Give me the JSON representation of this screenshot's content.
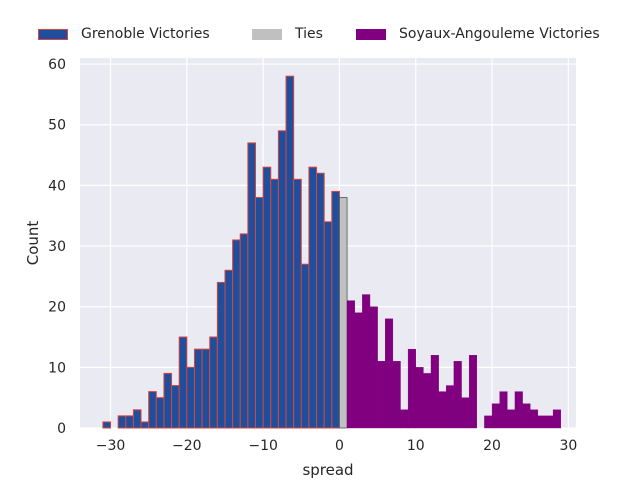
{
  "chart_data": {
    "type": "bar",
    "title": "",
    "xlabel": "spread",
    "ylabel": "Count",
    "xlim": [
      -34,
      31
    ],
    "ylim": [
      0,
      61
    ],
    "grid": true,
    "legend_position": "top-center",
    "x_ticks": [
      -30,
      -20,
      -10,
      0,
      10,
      20,
      30
    ],
    "x_tick_labels": [
      "−30",
      "−20",
      "−10",
      "0",
      "10",
      "20",
      "30"
    ],
    "y_ticks": [
      0,
      10,
      20,
      30,
      40,
      50,
      60
    ],
    "y_tick_labels": [
      "0",
      "10",
      "20",
      "30",
      "40",
      "50",
      "60"
    ],
    "bin_width": 1,
    "colors": {
      "background": "#eaeaf2",
      "grid": "#ffffff",
      "grenoble_fill": "#1f4e9c",
      "grenoble_edge": "#d9453c",
      "ties_fill": "#c0c0c0",
      "ties_edge": "#555555",
      "soyaux_fill": "#800080"
    },
    "series": [
      {
        "name": "Grenoble Victories",
        "key": "grenoble",
        "bins": [
          [
            -31,
            1
          ],
          [
            -29,
            2
          ],
          [
            -28,
            2
          ],
          [
            -27,
            3
          ],
          [
            -26,
            1
          ],
          [
            -25,
            6
          ],
          [
            -24,
            5
          ],
          [
            -23,
            9
          ],
          [
            -22,
            7
          ],
          [
            -21,
            15
          ],
          [
            -20,
            10
          ],
          [
            -19,
            13
          ],
          [
            -18,
            13
          ],
          [
            -17,
            15
          ],
          [
            -16,
            24
          ],
          [
            -15,
            26
          ],
          [
            -14,
            31
          ],
          [
            -13,
            32
          ],
          [
            -12,
            47
          ],
          [
            -11,
            38
          ],
          [
            -10,
            43
          ],
          [
            -9,
            41
          ],
          [
            -8,
            49
          ],
          [
            -7,
            58
          ],
          [
            -6,
            41
          ],
          [
            -5,
            27
          ],
          [
            -4,
            43
          ],
          [
            -3,
            42
          ],
          [
            -2,
            34
          ],
          [
            -1,
            39
          ]
        ]
      },
      {
        "name": "Ties",
        "key": "ties",
        "bins": [
          [
            0,
            38
          ]
        ]
      },
      {
        "name": "Soyaux-Angouleme Victories",
        "key": "soyaux",
        "bins": [
          [
            1,
            21
          ],
          [
            2,
            19
          ],
          [
            3,
            22
          ],
          [
            4,
            20
          ],
          [
            5,
            11
          ],
          [
            6,
            18
          ],
          [
            7,
            11
          ],
          [
            8,
            3
          ],
          [
            9,
            13
          ],
          [
            10,
            10
          ],
          [
            11,
            9
          ],
          [
            12,
            12
          ],
          [
            13,
            6
          ],
          [
            14,
            7
          ],
          [
            15,
            11
          ],
          [
            16,
            5
          ],
          [
            17,
            12
          ],
          [
            19,
            2
          ],
          [
            20,
            4
          ],
          [
            21,
            6
          ],
          [
            22,
            3
          ],
          [
            23,
            6
          ],
          [
            24,
            4
          ],
          [
            25,
            3
          ],
          [
            26,
            2
          ],
          [
            27,
            2
          ],
          [
            28,
            3
          ]
        ]
      }
    ]
  }
}
